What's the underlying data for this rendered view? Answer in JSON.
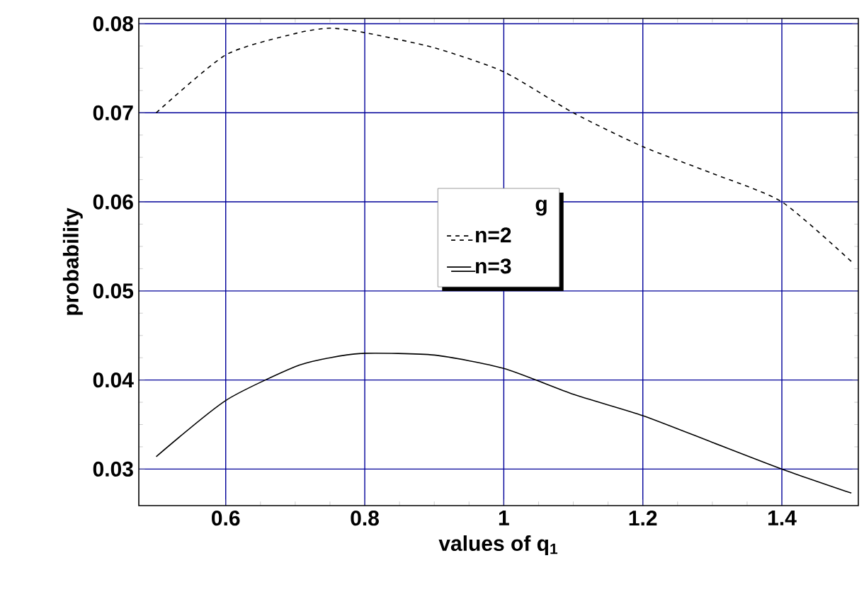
{
  "chart_data": {
    "type": "line",
    "xlabel": "values of q$_{1}$",
    "ylabel": "probability",
    "legend_title": "g",
    "legend": "center",
    "grid": true,
    "x": [
      0.5,
      0.6,
      0.7,
      0.75,
      0.8,
      0.9,
      1.0,
      1.1,
      1.2,
      1.3,
      1.4,
      1.5
    ],
    "series": [
      {
        "name": "n=2",
        "color": "#000000",
        "line_style": "dashed",
        "values": [
          0.07,
          0.0765,
          0.0789,
          0.0795,
          0.079,
          0.0773,
          0.0746,
          0.07,
          0.0662,
          0.0632,
          0.06,
          0.0533
        ]
      },
      {
        "name": "n=3",
        "color": "#000000",
        "line_style": "solid",
        "values": [
          0.0314,
          0.0377,
          0.0415,
          0.0425,
          0.043,
          0.0428,
          0.0413,
          0.0384,
          0.036,
          0.033,
          0.03,
          0.0273
        ]
      }
    ],
    "xlim": [
      0.475,
      1.51
    ],
    "ylim": [
      0.0259,
      0.0806
    ],
    "xticks": [
      0.6,
      0.8,
      {
        "value": 1,
        "label": "1"
      },
      1.2,
      1.4
    ],
    "yticks": [
      0.03,
      0.04,
      0.05,
      0.06,
      0.07,
      0.08
    ]
  }
}
